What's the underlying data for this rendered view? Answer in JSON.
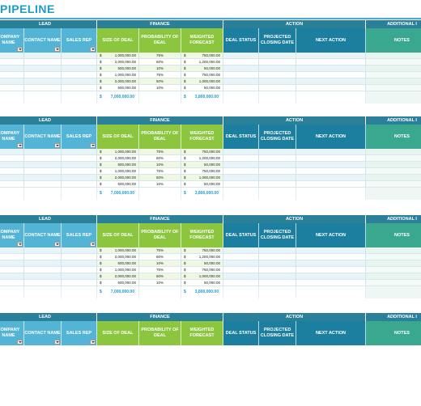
{
  "page_title": "PIPELINE",
  "colors": {
    "title": "#1c9ccb",
    "lead_header": "#54b4d6",
    "finance_header": "#8cc63f",
    "action_header": "#1d7fa0",
    "notes_header": "#3aa88f",
    "group_bar": "#2a7f99",
    "total_text": "#1c9ccb"
  },
  "groups": {
    "lead": "LEAD",
    "finance": "FINANCE",
    "action": "ACTION",
    "additional": "ADDITIONAL I"
  },
  "columns": {
    "company_name": "COMPANY NAME",
    "contact_name": "CONTACT NAME",
    "sales_rep": "SALES REP",
    "size_of_deal": "SIZE OF DEAL",
    "probability_of_deal": "PROBABILITY OF DEAL",
    "weighted_forecast": "WEIGHTED FORECAST",
    "deal_status": "DEAL STATUS",
    "projected_closing_date": "PROJECTED CLOSING DATE",
    "next_action": "NEXT ACTION",
    "notes": "NOTES"
  },
  "tables": [
    {
      "rows": [
        {
          "currency": "$",
          "size": "1,000,000.00",
          "prob": "75%",
          "wcur": "$",
          "weighted": "750,000.00"
        },
        {
          "currency": "$",
          "size": "2,000,000.00",
          "prob": "60%",
          "wcur": "$",
          "weighted": "1,200,000.00"
        },
        {
          "currency": "$",
          "size": "500,000.00",
          "prob": "10%",
          "wcur": "$",
          "weighted": "50,000.00"
        },
        {
          "currency": "$",
          "size": "1,000,000.00",
          "prob": "75%",
          "wcur": "$",
          "weighted": "750,000.00"
        },
        {
          "currency": "$",
          "size": "2,000,000.00",
          "prob": "50%",
          "wcur": "$",
          "weighted": "1,000,000.00"
        },
        {
          "currency": "$",
          "size": "500,000.00",
          "prob": "10%",
          "wcur": "$",
          "weighted": "50,000.00"
        }
      ],
      "total": {
        "currency": "$",
        "size": "7,000,000.00",
        "wcur": "$",
        "weighted": "3,800,000.00"
      }
    },
    {
      "rows": [
        {
          "currency": "$",
          "size": "1,000,000.00",
          "prob": "75%",
          "wcur": "$",
          "weighted": "750,000.00"
        },
        {
          "currency": "$",
          "size": "2,000,000.00",
          "prob": "60%",
          "wcur": "$",
          "weighted": "1,200,000.00"
        },
        {
          "currency": "$",
          "size": "500,000.00",
          "prob": "10%",
          "wcur": "$",
          "weighted": "50,000.00"
        },
        {
          "currency": "$",
          "size": "1,000,000.00",
          "prob": "75%",
          "wcur": "$",
          "weighted": "750,000.00"
        },
        {
          "currency": "$",
          "size": "2,000,000.00",
          "prob": "50%",
          "wcur": "$",
          "weighted": "1,000,000.00"
        },
        {
          "currency": "$",
          "size": "500,000.00",
          "prob": "10%",
          "wcur": "$",
          "weighted": "50,000.00"
        }
      ],
      "total": {
        "currency": "$",
        "size": "7,000,000.00",
        "wcur": "$",
        "weighted": "3,800,000.00"
      }
    },
    {
      "rows": [
        {
          "currency": "$",
          "size": "1,000,000.00",
          "prob": "75%",
          "wcur": "$",
          "weighted": "750,000.00"
        },
        {
          "currency": "$",
          "size": "2,000,000.00",
          "prob": "60%",
          "wcur": "$",
          "weighted": "1,200,000.00"
        },
        {
          "currency": "$",
          "size": "500,000.00",
          "prob": "10%",
          "wcur": "$",
          "weighted": "50,000.00"
        },
        {
          "currency": "$",
          "size": "1,000,000.00",
          "prob": "75%",
          "wcur": "$",
          "weighted": "750,000.00"
        },
        {
          "currency": "$",
          "size": "2,000,000.00",
          "prob": "50%",
          "wcur": "$",
          "weighted": "1,000,000.00"
        },
        {
          "currency": "$",
          "size": "500,000.00",
          "prob": "10%",
          "wcur": "$",
          "weighted": "50,000.00"
        }
      ],
      "total": {
        "currency": "$",
        "size": "7,000,000.00",
        "wcur": "$",
        "weighted": "3,800,000.00"
      }
    }
  ],
  "partial_table": {}
}
